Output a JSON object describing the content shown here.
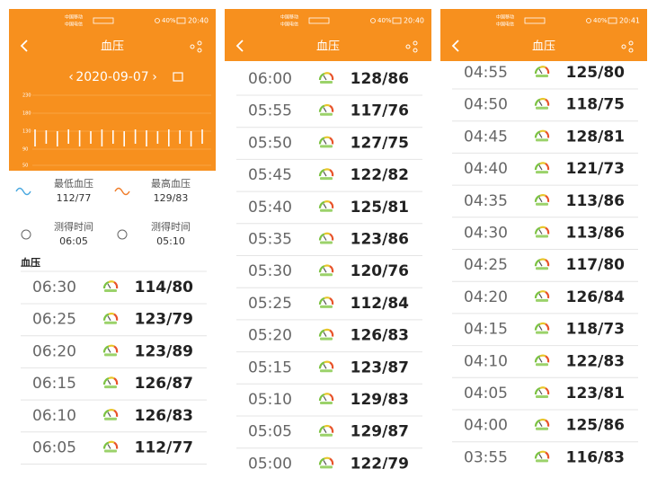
{
  "panels": [
    {
      "status": {
        "carrier_1": "中国移动",
        "carrier_2": "中国电信",
        "battery": "40%",
        "time": "20:40"
      },
      "title": "血压",
      "date": "2020-09-07",
      "chart_yticks": [
        "230",
        "180",
        "130",
        "90",
        "50"
      ],
      "summary": {
        "low_label": "最低血压",
        "low_value": "112/77",
        "high_label": "最高血压",
        "high_value": "129/83",
        "low_time_label": "测得时间",
        "low_time": "06:05",
        "high_time_label": "测得时间",
        "high_time": "05:10"
      },
      "section": "血压",
      "rows": [
        {
          "time": "06:30",
          "reading": "114/80"
        },
        {
          "time": "06:25",
          "reading": "123/79"
        },
        {
          "time": "06:20",
          "reading": "123/89"
        },
        {
          "time": "06:15",
          "reading": "126/87"
        },
        {
          "time": "06:10",
          "reading": "126/83"
        },
        {
          "time": "06:05",
          "reading": "112/77"
        }
      ]
    },
    {
      "status": {
        "carrier_1": "中国移动",
        "carrier_2": "中国电信",
        "battery": "40%",
        "time": "20:40"
      },
      "title": "血压",
      "rows": [
        {
          "time": "06:00",
          "reading": "128/86"
        },
        {
          "time": "05:55",
          "reading": "117/76"
        },
        {
          "time": "05:50",
          "reading": "127/75"
        },
        {
          "time": "05:45",
          "reading": "122/82"
        },
        {
          "time": "05:40",
          "reading": "125/81"
        },
        {
          "time": "05:35",
          "reading": "123/86"
        },
        {
          "time": "05:30",
          "reading": "120/76"
        },
        {
          "time": "05:25",
          "reading": "112/84"
        },
        {
          "time": "05:20",
          "reading": "126/83"
        },
        {
          "time": "05:15",
          "reading": "123/87"
        },
        {
          "time": "05:10",
          "reading": "129/83"
        },
        {
          "time": "05:05",
          "reading": "129/87"
        },
        {
          "time": "05:00",
          "reading": "122/79"
        }
      ]
    },
    {
      "status": {
        "carrier_1": "中国移动",
        "carrier_2": "中国电信",
        "battery": "40%",
        "time": "20:41"
      },
      "title": "血压",
      "rows": [
        {
          "time": "04:55",
          "reading": "125/80"
        },
        {
          "time": "04:50",
          "reading": "118/75"
        },
        {
          "time": "04:45",
          "reading": "128/81"
        },
        {
          "time": "04:40",
          "reading": "121/73"
        },
        {
          "time": "04:35",
          "reading": "113/86"
        },
        {
          "time": "04:30",
          "reading": "113/86"
        },
        {
          "time": "04:25",
          "reading": "117/80"
        },
        {
          "time": "04:20",
          "reading": "126/84"
        },
        {
          "time": "04:15",
          "reading": "118/73"
        },
        {
          "time": "04:10",
          "reading": "122/83"
        },
        {
          "time": "04:05",
          "reading": "123/81"
        },
        {
          "time": "04:00",
          "reading": "125/86"
        },
        {
          "time": "03:55",
          "reading": "116/83"
        }
      ]
    }
  ]
}
